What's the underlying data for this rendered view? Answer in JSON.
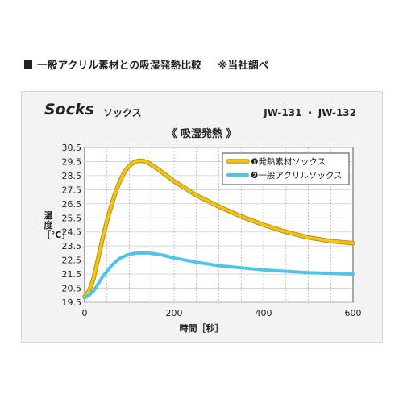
{
  "heading": {
    "title": "一般アクリル素材との吸湿発熱比較",
    "note": "※当社調べ"
  },
  "chart_data": {
    "type": "line",
    "brand": "Socks",
    "brand_sub": "ソックス",
    "model": "JW-131 ・ JW-132",
    "title": "《 吸湿発熱 》",
    "xlabel": "時間［秒］",
    "ylabel": "温度［℃］",
    "xlim": [
      0,
      600
    ],
    "ylim": [
      19.5,
      30.5
    ],
    "xticks": [
      0,
      200,
      400,
      600
    ],
    "yticks": [
      19.5,
      20.5,
      21.5,
      22.5,
      23.5,
      24.5,
      25.5,
      26.5,
      27.5,
      28.5,
      29.5,
      30.5
    ],
    "grid": true,
    "legend_position": "top-right",
    "series": [
      {
        "name": "❶発熱素材ソックス",
        "color": "#f0c21b",
        "x": [
          0,
          10,
          20,
          30,
          40,
          50,
          60,
          70,
          80,
          90,
          100,
          110,
          120,
          130,
          140,
          150,
          175,
          200,
          250,
          300,
          350,
          400,
          450,
          500,
          550,
          600
        ],
        "y": [
          19.9,
          20.3,
          21.2,
          22.6,
          24.0,
          25.3,
          26.4,
          27.4,
          28.2,
          28.8,
          29.2,
          29.45,
          29.55,
          29.55,
          29.45,
          29.25,
          28.7,
          28.1,
          27.1,
          26.3,
          25.6,
          25.0,
          24.5,
          24.1,
          23.85,
          23.7
        ]
      },
      {
        "name": "❷一般アクリルソックス",
        "color": "#4fc3e8",
        "x": [
          0,
          10,
          20,
          30,
          40,
          50,
          60,
          70,
          80,
          90,
          100,
          110,
          120,
          130,
          140,
          150,
          160,
          175,
          200,
          250,
          300,
          350,
          400,
          450,
          500,
          550,
          600
        ],
        "y": [
          19.8,
          20.0,
          20.3,
          20.8,
          21.3,
          21.7,
          22.1,
          22.4,
          22.65,
          22.8,
          22.9,
          22.97,
          23.0,
          23.0,
          23.0,
          22.97,
          22.92,
          22.85,
          22.65,
          22.35,
          22.1,
          21.95,
          21.8,
          21.7,
          21.6,
          21.55,
          21.5
        ]
      }
    ]
  }
}
